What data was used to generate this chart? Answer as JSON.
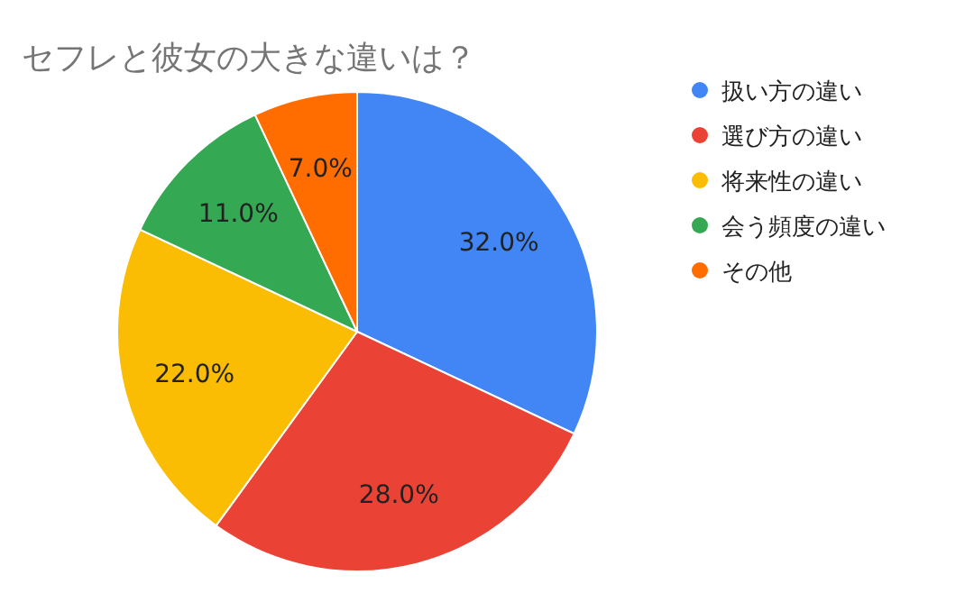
{
  "chart_data": {
    "type": "pie",
    "title": "セフレと彼女の大きな違いは？",
    "categories": [
      "扱い方の違い",
      "選び方の違い",
      "将来性の違い",
      "会う頻度の違い",
      "その他"
    ],
    "values": [
      32,
      28,
      22,
      11,
      7
    ],
    "value_labels": [
      "32.0%",
      "28.0%",
      "22.0%",
      "11.0%",
      "7.0%"
    ],
    "colors": [
      "#4285f4",
      "#ea4335",
      "#fbbc04",
      "#34a853",
      "#ff6d01"
    ],
    "legend": "right"
  }
}
